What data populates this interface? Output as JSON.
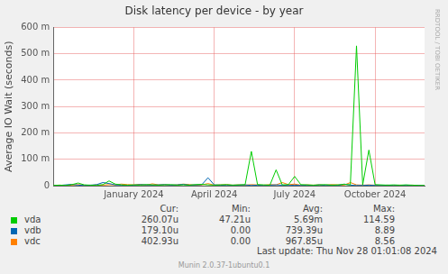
{
  "chart_data": {
    "type": "line",
    "title": "Disk latency per device - by year",
    "y_label": "Average IO Wait (seconds)",
    "categories": [
      null,
      null,
      null,
      null,
      null,
      null,
      null,
      null,
      null,
      null,
      null,
      null,
      null,
      "January 2024",
      null,
      null,
      null,
      null,
      null,
      null,
      null,
      null,
      null,
      null,
      null,
      null,
      "April 2024",
      null,
      null,
      null,
      null,
      null,
      null,
      null,
      null,
      null,
      null,
      null,
      null,
      "July 2024",
      null,
      null,
      null,
      null,
      null,
      null,
      null,
      null,
      null,
      null,
      null,
      null,
      "October 2024",
      null,
      null,
      null,
      null,
      null,
      null,
      null,
      null
    ],
    "series": [
      {
        "name": "vda",
        "color": "#00cc00",
        "stats": [
          "260.07u",
          "47.21u",
          "5.69m",
          "114.59"
        ],
        "values": [
          0.001,
          0.002,
          0.001,
          0.004,
          0.01,
          0.003,
          0.002,
          0.001,
          0.004,
          0.018,
          0.006,
          0.003,
          0.002,
          0.003,
          0.002,
          0.004,
          0.003,
          0.002,
          0.003,
          0.004,
          0.002,
          0.003,
          0.002,
          0.004,
          0.005,
          0.003,
          0.002,
          0.003,
          0.004,
          0.002,
          0.003,
          0.004,
          0.13,
          0.004,
          0.003,
          0.002,
          0.06,
          0.003,
          0.004,
          0.035,
          0.004,
          0.003,
          0.002,
          0.003,
          0.004,
          0.002,
          0.003,
          0.005,
          0.003,
          0.53,
          0.003,
          0.135,
          0.004,
          0.003,
          0.002,
          0.003,
          0.002,
          0.003,
          0.002,
          0.001,
          0.001
        ]
      },
      {
        "name": "vdb",
        "color": "#0066b3",
        "stats": [
          "179.10u",
          "0.00",
          "739.39u",
          "8.89"
        ],
        "values": [
          0,
          0.001,
          0.003,
          0.005,
          0.002,
          0.001,
          0.002,
          0.004,
          0.012,
          0.008,
          0.003,
          0.002,
          0.001,
          0.002,
          0.004,
          0.003,
          0.002,
          0.003,
          0.004,
          0.002,
          0.003,
          0.005,
          0.002,
          0.003,
          0.004,
          0.03,
          0.003,
          0.002,
          0.001,
          0.002,
          0.002,
          0.003,
          0.001,
          0.002,
          0.001,
          0.002,
          0.003,
          0.002,
          0.001,
          0.002,
          0.001,
          0.002,
          0.001,
          0.003,
          0.001,
          0.002,
          0.001,
          0.006,
          0.002,
          0.001,
          0.001,
          0.002,
          0.001,
          0.001,
          0.002,
          0.001,
          0.001,
          0.002,
          0.001,
          0.001,
          0
        ]
      },
      {
        "name": "vdc",
        "color": "#ff8000",
        "stats": [
          "402.93u",
          "0.00",
          "967.85u",
          "8.56"
        ],
        "values": [
          0.001,
          0.002,
          0.001,
          0.002,
          0.004,
          0.002,
          0.001,
          0.003,
          0.002,
          0.004,
          0.003,
          0.006,
          0.004,
          0.003,
          0.005,
          0.002,
          0.007,
          0.003,
          0.004,
          0.002,
          0.003,
          0.006,
          0.004,
          0.002,
          0.003,
          0.008,
          0.002,
          0.003,
          0.004,
          0.002,
          0.003,
          0.002,
          0.004,
          0.003,
          0.002,
          0.004,
          0.003,
          0.012,
          0.004,
          0.006,
          0.002,
          0.003,
          0.002,
          0.003,
          0.002,
          0.004,
          0.003,
          0.002,
          0.012,
          0.003,
          0.002,
          0.003,
          0.002,
          0.001,
          0.002,
          0.001,
          0.002,
          0.001,
          0.002,
          0.001,
          0
        ]
      }
    ],
    "ylim": [
      0,
      0.6
    ],
    "yticks": [
      0,
      {
        "value": 0.1,
        "label": "100 m"
      },
      {
        "value": 0.2,
        "label": "200 m"
      },
      {
        "value": 0.3,
        "label": "300 m"
      },
      {
        "value": 0.4,
        "label": "400 m"
      },
      {
        "value": 0.5,
        "label": "500 m"
      },
      {
        "value": 0.6,
        "label": "600 m"
      }
    ],
    "grid": true,
    "legend": "bottom",
    "legend_columns": [
      "Cur:",
      "Min:",
      "Avg:",
      "Max:"
    ],
    "annotations": [
      "Last update: Thu Nov 28 01:01:08 2024",
      "Munin 2.0.37-1ubuntu0.1",
      "RRDTOOL / TOBI OETIKER"
    ]
  }
}
